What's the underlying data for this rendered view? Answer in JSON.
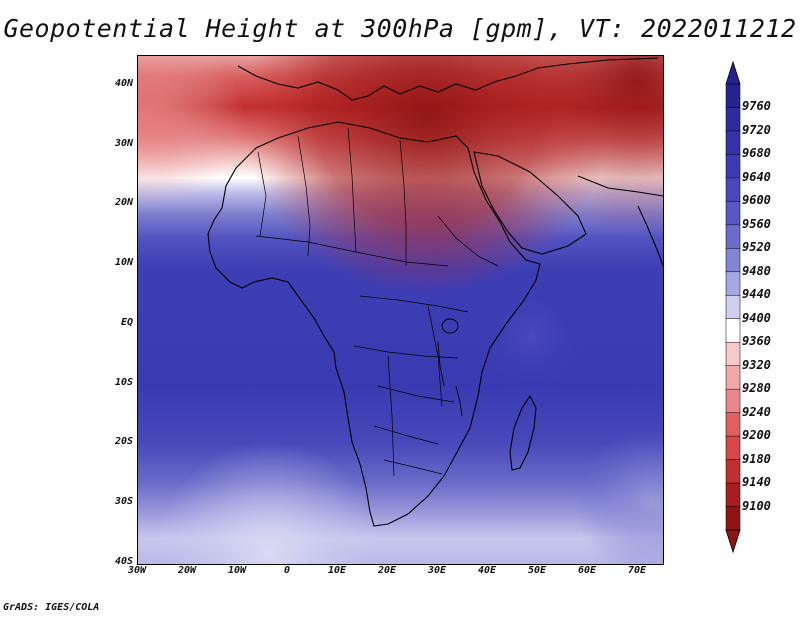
{
  "title": "Geopotential Height at 300hPa [gpm], VT: 2022011212",
  "credit": "GrADS: IGES/COLA",
  "map": {
    "lat_labels": [
      "40N",
      "30N",
      "20N",
      "10N",
      "EQ",
      "10S",
      "20S",
      "30S",
      "40S"
    ],
    "lon_labels": [
      "30W",
      "20W",
      "10W",
      "0",
      "10E",
      "20E",
      "30E",
      "40E",
      "50E",
      "60E",
      "70E"
    ],
    "lat_values": [
      40,
      30,
      20,
      10,
      0,
      -10,
      -20,
      -30,
      -40
    ],
    "lon_values": [
      -30,
      -20,
      -10,
      0,
      10,
      20,
      30,
      40,
      50,
      60,
      70
    ],
    "extent": {
      "lon_min": -30,
      "lon_max": 75,
      "lat_min": -40,
      "lat_max": 45
    }
  },
  "colorbar": {
    "labels": [
      "9760",
      "9720",
      "9680",
      "9640",
      "9600",
      "9560",
      "9520",
      "9480",
      "9440",
      "9400",
      "9360",
      "9320",
      "9280",
      "9240",
      "9200",
      "9180",
      "9140",
      "9100"
    ],
    "colors": [
      "#24248e",
      "#2c2c9c",
      "#3434a8",
      "#3c3cb2",
      "#4848ba",
      "#5858c2",
      "#6c6cca",
      "#8484d4",
      "#a6a6e2",
      "#cfcff0",
      "#ffffff",
      "#f6caca",
      "#f0a8a8",
      "#e88888",
      "#e06060",
      "#d84848",
      "#c03030",
      "#a81e1e",
      "#901414"
    ]
  },
  "colors": {
    "blue_deep": "#3a3ab4",
    "blue_mid": "#5050c0",
    "red_deep": "#9a1616",
    "red_mid": "#d24040"
  }
}
